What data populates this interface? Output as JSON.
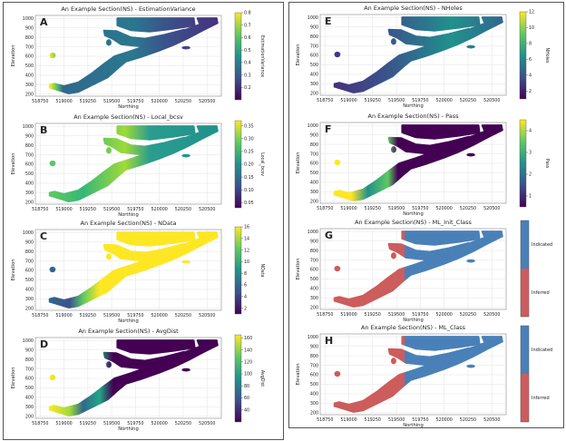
{
  "chart_data": [
    {
      "id": "A",
      "type": "heatmap",
      "title": "An Example Section(NS) - EstimationVariance",
      "xlabel": "Northing",
      "ylabel": "Elevation",
      "colorbar_label": "EstimationVariance",
      "colormap": "viridis",
      "colorbar_ticks": [
        "0.2",
        "0.3",
        "0.4",
        "0.5",
        "0.6",
        "0.7",
        "0.8"
      ],
      "clim": [
        0.1,
        0.8
      ]
    },
    {
      "id": "B",
      "type": "heatmap",
      "title": "An Example Section(NS) - Local_bcsv",
      "xlabel": "Northing",
      "ylabel": "Elevation",
      "colorbar_label": "Local_bcsv",
      "colormap": "viridis",
      "colorbar_ticks": [
        "0.05",
        "0.10",
        "0.15",
        "0.20",
        "0.25",
        "0.30",
        "0.35"
      ],
      "clim": [
        0.03,
        0.37
      ]
    },
    {
      "id": "C",
      "type": "heatmap",
      "title": "An Example Section(NS) - NData",
      "xlabel": "Northing",
      "ylabel": "Elevation",
      "colorbar_label": "NData",
      "colormap": "viridis",
      "colorbar_ticks": [
        "2",
        "4",
        "6",
        "8",
        "10",
        "12",
        "14",
        "16"
      ],
      "clim": [
        1,
        16
      ]
    },
    {
      "id": "D",
      "type": "heatmap",
      "title": "An Example Section(NS) - AvgDist",
      "xlabel": "Northing",
      "ylabel": "Elevation",
      "colorbar_label": "AvgDist",
      "colormap": "viridis",
      "colorbar_ticks": [
        "40",
        "60",
        "80",
        "100",
        "120",
        "140",
        "160"
      ],
      "clim": [
        20,
        165
      ]
    },
    {
      "id": "E",
      "type": "heatmap",
      "title": "An Example Section(NS) - NHoles",
      "xlabel": "Northing",
      "ylabel": "Elevation",
      "colorbar_label": "NHoles",
      "colormap": "viridis",
      "colorbar_ticks": [
        "2",
        "4",
        "6",
        "8",
        "10",
        "12"
      ],
      "clim": [
        1,
        12
      ]
    },
    {
      "id": "F",
      "type": "heatmap",
      "title": "An Example Section(NS) - Pass",
      "xlabel": "Northing",
      "ylabel": "Elevation",
      "colorbar_label": "Pass",
      "colormap": "viridis",
      "colorbar_ticks": [
        "1",
        "2",
        "3",
        "4"
      ],
      "clim": [
        0.5,
        4.5
      ]
    },
    {
      "id": "G",
      "type": "heatmap",
      "title": "An Example Section(NS) - ML_Init_Class",
      "xlabel": "Northing",
      "ylabel": "Elevation",
      "colormap": "categorical",
      "categories": [
        "Inferred",
        "Indicated"
      ],
      "category_colors": [
        "#cd5c5c",
        "#4a80b8"
      ]
    },
    {
      "id": "H",
      "type": "heatmap",
      "title": "An Example Section(NS) - ML_Class",
      "xlabel": "Northing",
      "ylabel": "Elevation",
      "colormap": "categorical",
      "categories": [
        "Inferred",
        "Indicated"
      ],
      "category_colors": [
        "#cd5c5c",
        "#4a80b8"
      ]
    }
  ],
  "axes": {
    "xlim": [
      518700,
      520650
    ],
    "ylim": [
      180,
      1030
    ],
    "xticks": [
      "518750",
      "519000",
      "519250",
      "519500",
      "519750",
      "520000",
      "520250",
      "520500"
    ],
    "yticks": [
      "200",
      "300",
      "400",
      "500",
      "600",
      "700",
      "800",
      "900",
      "1000"
    ],
    "grid": true
  }
}
